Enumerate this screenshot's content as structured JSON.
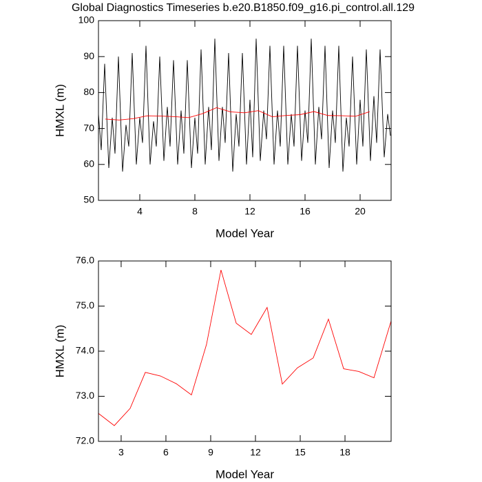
{
  "chart_data": [
    {
      "type": "line",
      "title": "Global Diagnostics Timeseries b.e20.B1850.f09_g16.pi_control.all.129",
      "xlabel": "Model Year",
      "ylabel": "HMXL (m)",
      "xlim": [
        1,
        22.25
      ],
      "ylim": [
        50,
        100
      ],
      "xticks": [
        4,
        8,
        12,
        16,
        20
      ],
      "yticks": [
        50,
        60,
        70,
        80,
        90,
        100
      ],
      "series": [
        {
          "color": "#000000",
          "x": [
            1,
            1.2,
            1.45,
            1.75,
            2,
            2.2,
            2.45,
            2.75,
            3,
            3.2,
            3.45,
            3.75,
            4,
            4.2,
            4.45,
            4.75,
            5,
            5.2,
            5.45,
            5.75,
            6,
            6.2,
            6.45,
            6.75,
            7,
            7.2,
            7.45,
            7.75,
            8,
            8.2,
            8.45,
            8.75,
            9,
            9.2,
            9.45,
            9.75,
            10,
            10.2,
            10.45,
            10.75,
            11,
            11.2,
            11.45,
            11.75,
            12,
            12.2,
            12.45,
            12.75,
            13,
            13.2,
            13.45,
            13.75,
            14,
            14.2,
            14.45,
            14.75,
            15,
            15.2,
            15.45,
            15.75,
            16,
            16.2,
            16.45,
            16.75,
            17,
            17.2,
            17.45,
            17.75,
            18,
            18.2,
            18.45,
            18.75,
            19,
            19.2,
            19.45,
            19.75,
            20,
            20.2,
            20.45,
            20.75,
            21,
            21.2,
            21.45,
            21.75,
            22,
            22.2
          ],
          "values": [
            74,
            64,
            88,
            59,
            73,
            63,
            90,
            58,
            71,
            65,
            91,
            60,
            73,
            66,
            93,
            60,
            72,
            65,
            90,
            61,
            76,
            65,
            89,
            60,
            75,
            63,
            89,
            59,
            73,
            63,
            92,
            60,
            76,
            64,
            95,
            61,
            76,
            66,
            91,
            58,
            74,
            65,
            91,
            60,
            78,
            62,
            95,
            61,
            75,
            67,
            93,
            60,
            75,
            65,
            93,
            60,
            74,
            65,
            93,
            61,
            75,
            66,
            95,
            60,
            76,
            67,
            93,
            59,
            75,
            66,
            93,
            58,
            73,
            65,
            90,
            60,
            78,
            65,
            92,
            61,
            79,
            66,
            92,
            62,
            74,
            68
          ]
        },
        {
          "color": "#ff0000",
          "x": [
            1.5,
            2.51,
            3.52,
            4.53,
            5.54,
            6.55,
            7.56,
            8.57,
            9.58,
            10.59,
            11.6,
            12.61,
            13.62,
            14.63,
            15.64,
            16.65,
            17.66,
            18.67,
            19.68,
            20.69
          ],
          "values": [
            72.62,
            72.35,
            72.73,
            73.53,
            73.45,
            73.28,
            73.03,
            74.15,
            75.8,
            74.62,
            74.37,
            74.97,
            73.27,
            73.63,
            73.85,
            74.71,
            73.61,
            73.55,
            73.41,
            74.67
          ]
        }
      ]
    },
    {
      "type": "line",
      "xlabel": "Model Year",
      "ylabel": "HMXL (m)",
      "xlim": [
        1.48,
        21.09
      ],
      "ylim": [
        72,
        76
      ],
      "xticks": [
        3,
        6,
        9,
        12,
        15,
        18
      ],
      "yticks": [
        {
          "value": 72,
          "label": "72.0"
        },
        {
          "value": 73,
          "label": "73.0"
        },
        {
          "value": 74,
          "label": "74.0"
        },
        {
          "value": 75,
          "label": "75.0"
        },
        {
          "value": 76,
          "label": "76.0"
        }
      ],
      "series": [
        {
          "color": "#ff0000",
          "x": [
            1.48,
            2.54,
            3.6,
            4.62,
            5.63,
            6.69,
            7.71,
            8.72,
            9.69,
            10.71,
            11.72,
            12.78,
            13.8,
            14.81,
            15.87,
            16.89,
            17.91,
            18.92,
            19.94,
            21.09
          ],
          "values": [
            72.62,
            72.35,
            72.73,
            73.53,
            73.45,
            73.28,
            73.03,
            74.15,
            75.8,
            74.62,
            74.37,
            74.97,
            73.27,
            73.63,
            73.85,
            74.71,
            73.61,
            73.55,
            73.41,
            74.67
          ]
        }
      ]
    }
  ]
}
